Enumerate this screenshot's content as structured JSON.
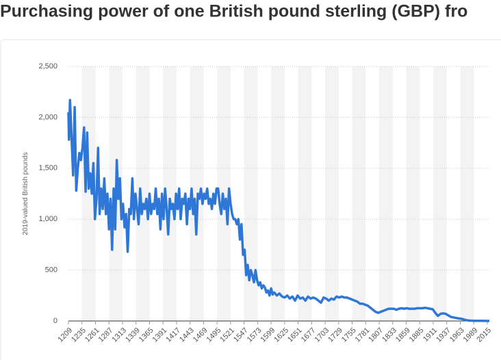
{
  "chart_data": {
    "type": "line",
    "title": "Purchasing power of one British pound sterling (GBP) fro",
    "y_label": "2019-valued British pounds",
    "xlim": [
      1209,
      2019
    ],
    "xticks": [
      1209,
      1235,
      1261,
      1287,
      1313,
      1339,
      1365,
      1391,
      1417,
      1443,
      1469,
      1495,
      1521,
      1547,
      1573,
      1599,
      1625,
      1651,
      1677,
      1703,
      1729,
      1755,
      1781,
      1807,
      1833,
      1859,
      1885,
      1911,
      1937,
      1963,
      1989,
      2015
    ],
    "ylim": [
      0,
      2500
    ],
    "yticks": [
      0,
      500,
      {
        "value": 1000,
        "label": "1,000"
      },
      {
        "value": 1500,
        "label": "1,500"
      },
      {
        "value": 2000,
        "label": "2,000"
      },
      {
        "value": 2500,
        "label": "2,500"
      }
    ],
    "grid": true,
    "series": [
      {
        "color": "#2f77d6",
        "x": [
          1209,
          1210,
          1212,
          1215,
          1218,
          1221,
          1224,
          1227,
          1230,
          1233,
          1236,
          1239,
          1242,
          1245,
          1248,
          1251,
          1254,
          1257,
          1260,
          1263,
          1266,
          1269,
          1272,
          1275,
          1278,
          1281,
          1284,
          1287,
          1290,
          1293,
          1296,
          1299,
          1302,
          1305,
          1308,
          1311,
          1314,
          1317,
          1320,
          1323,
          1326,
          1329,
          1332,
          1335,
          1338,
          1341,
          1344,
          1347,
          1350,
          1353,
          1356,
          1359,
          1362,
          1365,
          1368,
          1371,
          1374,
          1377,
          1380,
          1383,
          1386,
          1389,
          1392,
          1395,
          1398,
          1401,
          1404,
          1407,
          1410,
          1413,
          1416,
          1419,
          1422,
          1425,
          1428,
          1431,
          1434,
          1437,
          1440,
          1443,
          1446,
          1449,
          1452,
          1455,
          1458,
          1461,
          1464,
          1467,
          1470,
          1473,
          1476,
          1479,
          1482,
          1485,
          1488,
          1491,
          1494,
          1497,
          1500,
          1503,
          1506,
          1509,
          1512,
          1515,
          1518,
          1521,
          1524,
          1527,
          1530,
          1533,
          1536,
          1539,
          1542,
          1545,
          1548,
          1551,
          1554,
          1557,
          1560,
          1563,
          1566,
          1569,
          1572,
          1575,
          1578,
          1581,
          1584,
          1587,
          1590,
          1593,
          1596,
          1599,
          1602,
          1605,
          1610,
          1615,
          1620,
          1625,
          1630,
          1635,
          1640,
          1645,
          1650,
          1655,
          1660,
          1665,
          1670,
          1675,
          1680,
          1685,
          1690,
          1695,
          1700,
          1705,
          1710,
          1715,
          1720,
          1725,
          1730,
          1735,
          1740,
          1745,
          1750,
          1755,
          1760,
          1765,
          1770,
          1775,
          1780,
          1785,
          1790,
          1795,
          1800,
          1805,
          1810,
          1815,
          1820,
          1825,
          1830,
          1835,
          1840,
          1845,
          1850,
          1855,
          1860,
          1865,
          1870,
          1875,
          1880,
          1885,
          1890,
          1895,
          1900,
          1905,
          1910,
          1915,
          1920,
          1925,
          1930,
          1935,
          1940,
          1945,
          1950,
          1955,
          1960,
          1965,
          1970,
          1975,
          1980,
          1985,
          1990,
          1995,
          2000,
          2005,
          2010,
          2019
        ],
        "values": [
          2050,
          1780,
          2170,
          1800,
          1430,
          2100,
          1280,
          1500,
          1650,
          1580,
          1700,
          1900,
          1270,
          1850,
          1300,
          1450,
          1250,
          1550,
          1000,
          1200,
          1700,
          1050,
          1300,
          1100,
          1400,
          1050,
          1250,
          900,
          1200,
          700,
          1300,
          900,
          1580,
          1200,
          1400,
          1000,
          1150,
          920,
          1050,
          680,
          1100,
          1050,
          1400,
          1000,
          1250,
          1100,
          950,
          1300,
          1050,
          1150,
          1100,
          1200,
          1000,
          1250,
          1050,
          1150,
          1100,
          1300,
          1050,
          1200,
          900,
          1250,
          1000,
          1300,
          1100,
          850,
          1200,
          1100,
          1150,
          1000,
          1250,
          1100,
          1300,
          1000,
          1200,
          1150,
          1250,
          950,
          1200,
          1100,
          1300,
          1050,
          1200,
          850,
          1250,
          1200,
          1300,
          1150,
          1250,
          1200,
          1300,
          1150,
          1200,
          1100,
          1250,
          1150,
          1300,
          1300,
          1150,
          1050,
          1250,
          1100,
          1200,
          950,
          1300,
          1150,
          1050,
          1000,
          1000,
          950,
          1000,
          800,
          950,
          650,
          700,
          450,
          550,
          400,
          500,
          450,
          380,
          500,
          400,
          350,
          380,
          320,
          350,
          330,
          280,
          300,
          250,
          320,
          260,
          280,
          250,
          270,
          240,
          230,
          250,
          220,
          240,
          200,
          250,
          220,
          230,
          200,
          240,
          220,
          230,
          220,
          200,
          180,
          230,
          220,
          200,
          220,
          210,
          240,
          230,
          240,
          230,
          230,
          220,
          210,
          200,
          190,
          170,
          170,
          160,
          150,
          130,
          110,
          90,
          80,
          90,
          100,
          110,
          120,
          120,
          120,
          110,
          120,
          125,
          120,
          125,
          120,
          120,
          120,
          125,
          125,
          125,
          130,
          125,
          120,
          115,
          80,
          50,
          70,
          75,
          70,
          55,
          40,
          35,
          30,
          25,
          22,
          15,
          8,
          4,
          3,
          2,
          2,
          1.5,
          1.3,
          1.1,
          1
        ]
      }
    ]
  }
}
